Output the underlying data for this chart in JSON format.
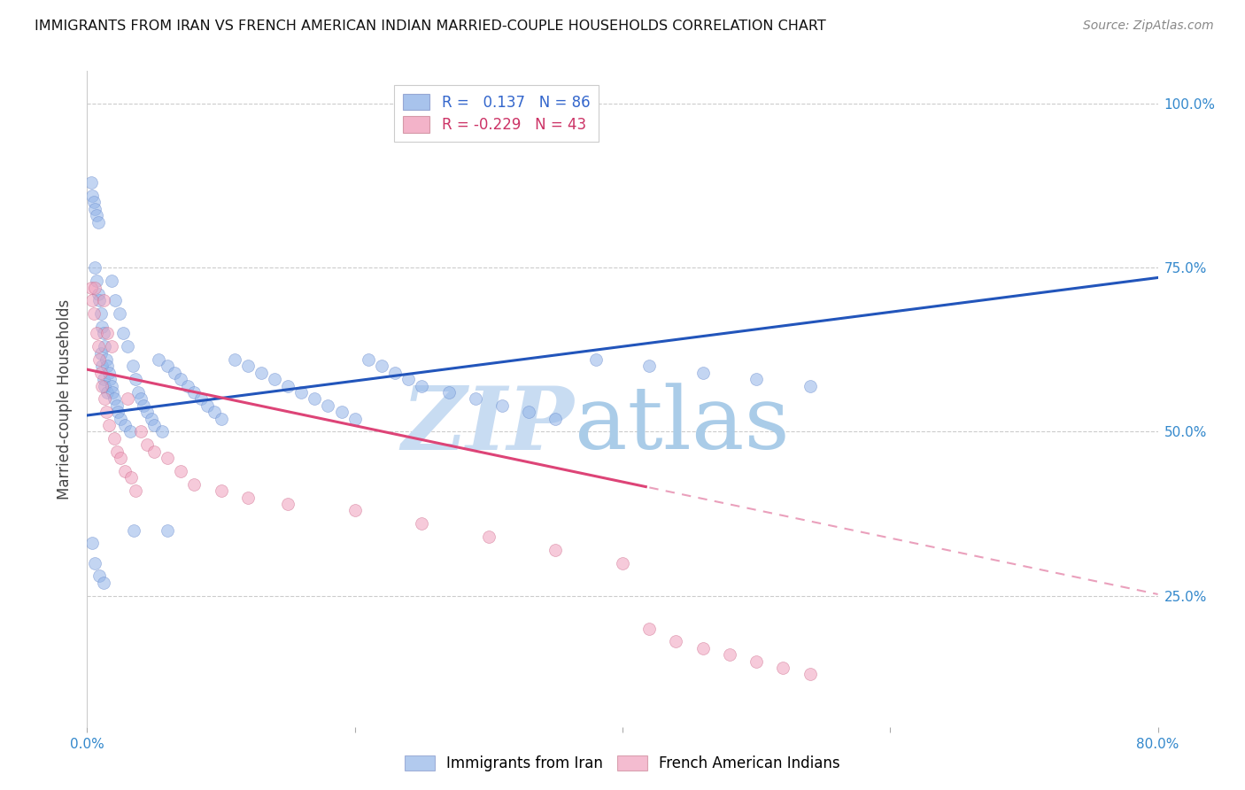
{
  "title": "IMMIGRANTS FROM IRAN VS FRENCH AMERICAN INDIAN MARRIED-COUPLE HOUSEHOLDS CORRELATION CHART",
  "source": "Source: ZipAtlas.com",
  "ylabel": "Married-couple Households",
  "xlim": [
    0.0,
    0.8
  ],
  "ylim": [
    0.05,
    1.05
  ],
  "blue_R": 0.137,
  "blue_N": 86,
  "pink_R": -0.229,
  "pink_N": 43,
  "blue_color": "#92B4E8",
  "pink_color": "#F0A0BC",
  "blue_line_color": "#2255BB",
  "pink_line_color": "#DD4477",
  "pink_dash_color": "#EAA0BC",
  "legend_label_blue": "Immigrants from Iran",
  "legend_label_pink": "French American Indians",
  "blue_x": [
    0.003,
    0.004,
    0.005,
    0.006,
    0.006,
    0.007,
    0.007,
    0.008,
    0.008,
    0.009,
    0.01,
    0.01,
    0.011,
    0.011,
    0.012,
    0.012,
    0.013,
    0.013,
    0.014,
    0.015,
    0.015,
    0.016,
    0.017,
    0.018,
    0.018,
    0.019,
    0.02,
    0.021,
    0.022,
    0.023,
    0.024,
    0.025,
    0.027,
    0.028,
    0.03,
    0.032,
    0.034,
    0.036,
    0.038,
    0.04,
    0.042,
    0.045,
    0.048,
    0.05,
    0.053,
    0.056,
    0.06,
    0.065,
    0.07,
    0.075,
    0.08,
    0.085,
    0.09,
    0.095,
    0.1,
    0.11,
    0.12,
    0.13,
    0.14,
    0.15,
    0.16,
    0.17,
    0.18,
    0.19,
    0.2,
    0.21,
    0.22,
    0.23,
    0.24,
    0.25,
    0.27,
    0.29,
    0.31,
    0.33,
    0.35,
    0.38,
    0.42,
    0.46,
    0.5,
    0.54,
    0.004,
    0.006,
    0.009,
    0.012,
    0.035,
    0.06
  ],
  "blue_y": [
    0.88,
    0.86,
    0.85,
    0.84,
    0.75,
    0.83,
    0.73,
    0.82,
    0.71,
    0.7,
    0.68,
    0.62,
    0.66,
    0.6,
    0.65,
    0.58,
    0.63,
    0.57,
    0.61,
    0.6,
    0.56,
    0.59,
    0.58,
    0.57,
    0.73,
    0.56,
    0.55,
    0.7,
    0.54,
    0.53,
    0.68,
    0.52,
    0.65,
    0.51,
    0.63,
    0.5,
    0.6,
    0.58,
    0.56,
    0.55,
    0.54,
    0.53,
    0.52,
    0.51,
    0.61,
    0.5,
    0.6,
    0.59,
    0.58,
    0.57,
    0.56,
    0.55,
    0.54,
    0.53,
    0.52,
    0.61,
    0.6,
    0.59,
    0.58,
    0.57,
    0.56,
    0.55,
    0.54,
    0.53,
    0.52,
    0.61,
    0.6,
    0.59,
    0.58,
    0.57,
    0.56,
    0.55,
    0.54,
    0.53,
    0.52,
    0.61,
    0.6,
    0.59,
    0.58,
    0.57,
    0.33,
    0.3,
    0.28,
    0.27,
    0.35,
    0.35
  ],
  "pink_x": [
    0.003,
    0.004,
    0.005,
    0.006,
    0.007,
    0.008,
    0.009,
    0.01,
    0.011,
    0.012,
    0.013,
    0.014,
    0.015,
    0.016,
    0.018,
    0.02,
    0.022,
    0.025,
    0.028,
    0.03,
    0.033,
    0.036,
    0.04,
    0.045,
    0.05,
    0.06,
    0.07,
    0.08,
    0.1,
    0.12,
    0.15,
    0.2,
    0.25,
    0.3,
    0.35,
    0.4,
    0.42,
    0.44,
    0.46,
    0.48,
    0.5,
    0.52,
    0.54
  ],
  "pink_y": [
    0.72,
    0.7,
    0.68,
    0.72,
    0.65,
    0.63,
    0.61,
    0.59,
    0.57,
    0.7,
    0.55,
    0.53,
    0.65,
    0.51,
    0.63,
    0.49,
    0.47,
    0.46,
    0.44,
    0.55,
    0.43,
    0.41,
    0.5,
    0.48,
    0.47,
    0.46,
    0.44,
    0.42,
    0.41,
    0.4,
    0.39,
    0.38,
    0.36,
    0.34,
    0.32,
    0.3,
    0.2,
    0.18,
    0.17,
    0.16,
    0.15,
    0.14,
    0.13
  ]
}
